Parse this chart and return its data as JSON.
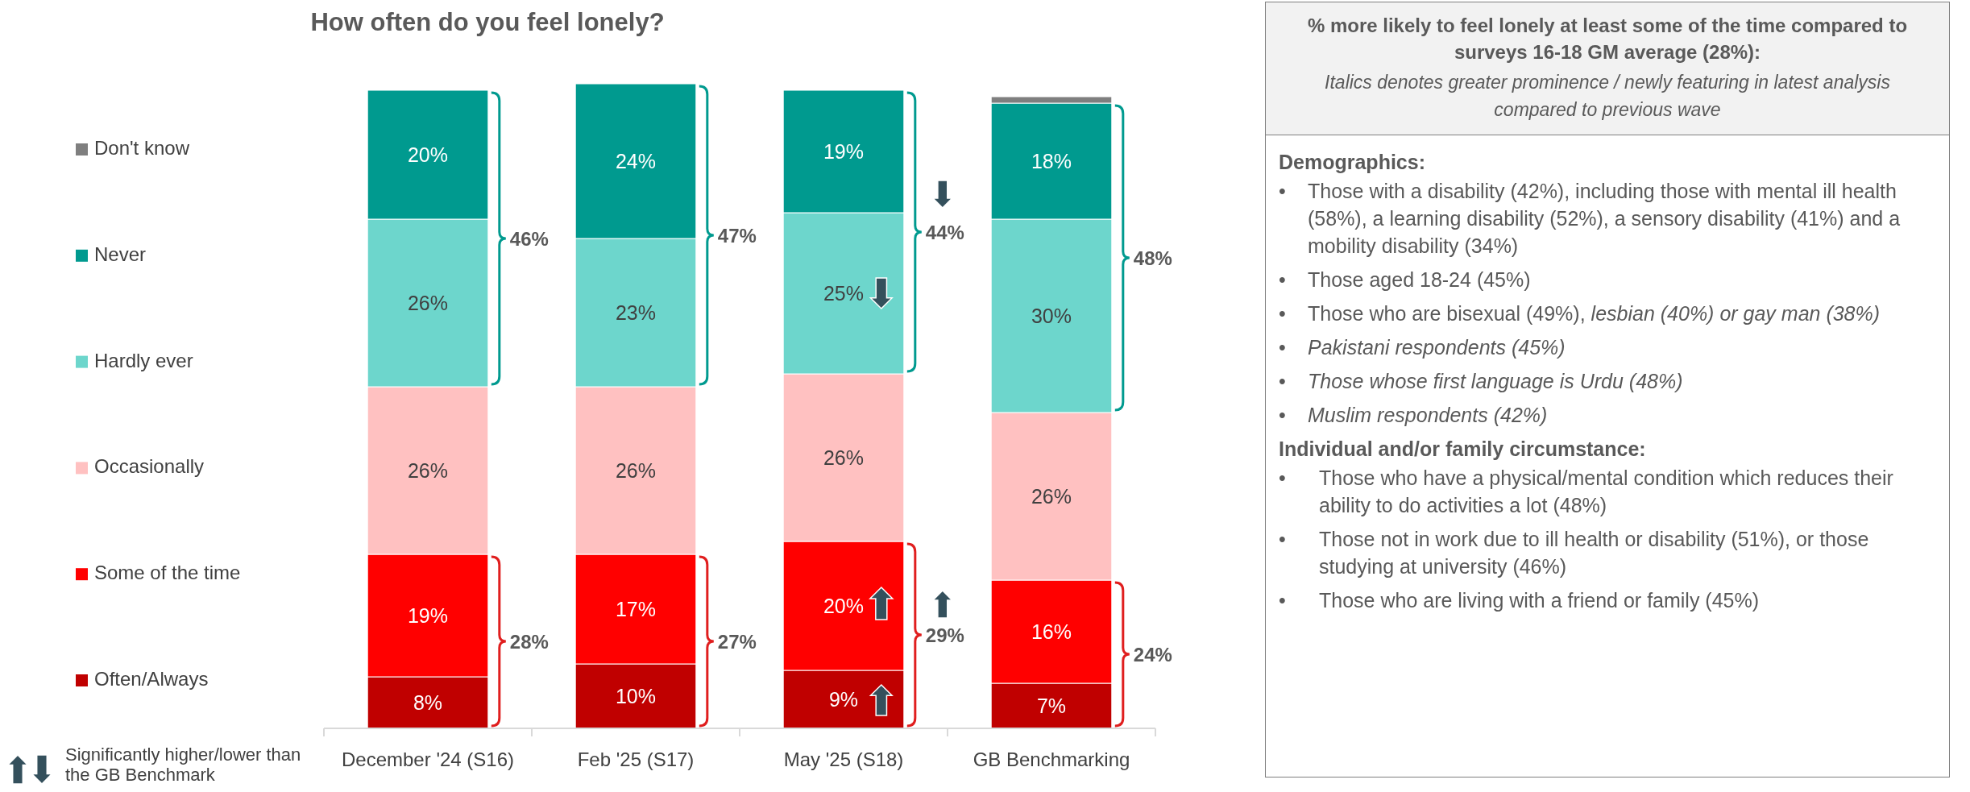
{
  "chart_data": [
    {
      "type": "bar",
      "title": "How often do you feel lonely?",
      "stacked": true,
      "categories": [
        "December '24 (S16)",
        "Feb '25 (S17)",
        "May '25 (S18)",
        "GB Benchmarking"
      ],
      "ylim": [
        0,
        100
      ],
      "tick_labels": "x",
      "legend": "left",
      "series": [
        {
          "name": "Often/Always",
          "color": "#c00000",
          "values": [
            8,
            10,
            9,
            7
          ],
          "value_labels": [
            "8%",
            "10%",
            "9%",
            "7%"
          ]
        },
        {
          "name": "Some of the time",
          "color": "#ff0000",
          "values": [
            19,
            17,
            20,
            16
          ],
          "value_labels": [
            "19%",
            "17%",
            "20%",
            "16%"
          ]
        },
        {
          "name": "Occasionally",
          "color": "#ffc1c1",
          "values": [
            26,
            26,
            26,
            26
          ],
          "value_labels": [
            "26%",
            "26%",
            "26%",
            "26%"
          ]
        },
        {
          "name": "Hardly ever",
          "color": "#6dd6cc",
          "values": [
            26,
            23,
            25,
            30
          ],
          "value_labels": [
            "26%",
            "23%",
            "25%",
            "30%"
          ]
        },
        {
          "name": "Never",
          "color": "#009a8f",
          "values": [
            20,
            24,
            19,
            18
          ],
          "value_labels": [
            "20%",
            "24%",
            "19%",
            "18%"
          ]
        },
        {
          "name": "Don't know",
          "color": "#7f7f7f",
          "values": [
            0,
            0,
            0,
            1
          ],
          "value_labels": [
            null,
            null,
            null,
            null
          ]
        }
      ],
      "annotations": [
        "46%",
        "28%",
        "47%",
        "27%",
        "44%",
        "29%",
        "48%",
        "24%",
        "Significantly higher/lower than the GB Benchmark"
      ]
    },
    {
      "type": "other",
      "title": "% more likely to feel lonely at least some of the time compared to surveys 16-18 GM average (28%):",
      "subtitle": "Italics denotes greater prominence / newly featuring in latest analysis compared to previous wave",
      "annotations": [
        "Demographics:",
        "• Those with a disability (42%), including those with mental ill health (58%), a learning disability (52%), a sensory disability (41%) and a mobility disability (34%)",
        "• Those aged 18-24 (45%)",
        "• Those who are bisexual (49%),",
        "lesbian (40%) or gay man (38%)",
        "• Pakistani respondents (45%)",
        "• Those whose first language is Urdu (48%)",
        "• Muslim respondents (42%)",
        "Individual and/or family circumstance:",
        "• Those who have a physical/mental condition which reduces their ability to do activities a lot (48%)",
        "• Those not in work due to ill health or disability (51%), or those studying at university (46%)",
        "• Those who are living with a friend or family (45%)"
      ]
    }
  ]
}
